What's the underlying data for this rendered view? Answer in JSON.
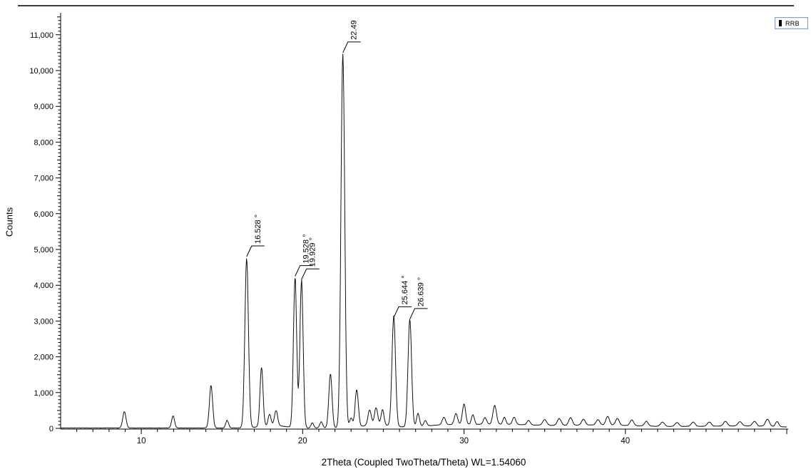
{
  "legend": {
    "series_label": "RRB",
    "swatch_color": "#000000",
    "border_color": "#8ca0b8"
  },
  "chart_data": {
    "type": "line",
    "subtype": "xrd-diffractogram",
    "title": "",
    "xlabel": "2Theta (Coupled TwoTheta/Theta) WL=1.54060",
    "ylabel": "Counts",
    "xlim": [
      5,
      50
    ],
    "ylim": [
      0,
      11500
    ],
    "grid": false,
    "legend_position": "top-right",
    "trace_color": "#101010",
    "x_major_ticks": [
      [
        10,
        "10"
      ],
      [
        20,
        "20"
      ],
      [
        30,
        "30"
      ],
      [
        40,
        "40"
      ]
    ],
    "y_major_ticks": [
      [
        0,
        "0"
      ],
      [
        1000,
        "1,000"
      ],
      [
        2000,
        "2,000"
      ],
      [
        3000,
        "3,000"
      ],
      [
        4000,
        "4,000"
      ],
      [
        5000,
        "5,000"
      ],
      [
        6000,
        "6,000"
      ],
      [
        7000,
        "7,000"
      ],
      [
        8000,
        "8,000"
      ],
      [
        9000,
        "9,000"
      ],
      [
        10000,
        "10,000"
      ],
      [
        11000,
        "11,000"
      ]
    ],
    "x_minor_step_deg": 1,
    "y_minor_step_counts": 100,
    "series": [
      {
        "name": "RRB",
        "baseline_counts": 12,
        "noise_amplitude": 6,
        "peaks": [
          [
            8.95,
            460,
            0.1
          ],
          [
            11.97,
            340,
            0.09
          ],
          [
            14.32,
            1190,
            0.1
          ],
          [
            15.32,
            210,
            0.09
          ],
          [
            16.528,
            4760,
            0.11
          ],
          [
            17.45,
            1650,
            0.095
          ],
          [
            17.95,
            330,
            0.09
          ],
          [
            18.35,
            430,
            0.1
          ],
          [
            19.528,
            4180,
            0.1
          ],
          [
            19.929,
            4120,
            0.1
          ],
          [
            20.6,
            150,
            0.08
          ],
          [
            21.15,
            170,
            0.09
          ],
          [
            21.72,
            1510,
            0.1
          ],
          [
            22.49,
            10480,
            0.115
          ],
          [
            23.0,
            260,
            0.09
          ],
          [
            23.35,
            1040,
            0.1
          ],
          [
            24.15,
            430,
            0.1
          ],
          [
            24.55,
            480,
            0.1
          ],
          [
            24.95,
            430,
            0.09
          ],
          [
            25.644,
            3060,
            0.11
          ],
          [
            26.639,
            3010,
            0.11
          ],
          [
            27.15,
            370,
            0.09
          ],
          [
            27.6,
            150,
            0.09
          ],
          [
            28.75,
            210,
            0.1
          ],
          [
            29.5,
            310,
            0.1
          ],
          [
            30.0,
            580,
            0.1
          ],
          [
            30.55,
            270,
            0.09
          ],
          [
            31.3,
            190,
            0.1
          ],
          [
            31.9,
            520,
            0.11
          ],
          [
            32.5,
            190,
            0.09
          ],
          [
            33.1,
            200,
            0.1
          ],
          [
            34.0,
            120,
            0.1
          ],
          [
            35.0,
            160,
            0.12
          ],
          [
            35.9,
            190,
            0.12
          ],
          [
            36.6,
            210,
            0.11
          ],
          [
            37.4,
            160,
            0.11
          ],
          [
            38.3,
            150,
            0.11
          ],
          [
            38.9,
            240,
            0.11
          ],
          [
            39.5,
            190,
            0.11
          ],
          [
            40.4,
            160,
            0.11
          ],
          [
            41.3,
            130,
            0.11
          ],
          [
            42.3,
            120,
            0.12
          ],
          [
            43.2,
            110,
            0.12
          ],
          [
            44.2,
            120,
            0.12
          ],
          [
            45.2,
            120,
            0.12
          ],
          [
            46.2,
            130,
            0.12
          ],
          [
            47.1,
            120,
            0.12
          ],
          [
            48.0,
            130,
            0.12
          ],
          [
            48.8,
            200,
            0.12
          ],
          [
            49.4,
            140,
            0.1
          ],
          [
            18.2,
            60,
            0.8
          ],
          [
            24.6,
            90,
            0.9
          ],
          [
            28.5,
            60,
            1.2
          ],
          [
            30.5,
            60,
            1.5
          ],
          [
            32.8,
            60,
            1.5
          ],
          [
            36.0,
            50,
            2.5
          ],
          [
            39.0,
            50,
            2.0
          ],
          [
            44.0,
            35,
            3.0
          ],
          [
            48.0,
            40,
            2.0
          ]
        ]
      }
    ],
    "annotations": [
      {
        "label": "16.528 °",
        "two_theta": 16.528,
        "apex_counts": 4800,
        "clipped": false
      },
      {
        "label": "19.528 °",
        "two_theta": 19.528,
        "apex_counts": 4250,
        "clipped": false
      },
      {
        "label": "19.929 °",
        "two_theta": 19.929,
        "apex_counts": 4160,
        "clipped": false
      },
      {
        "label": "22.49",
        "two_theta": 22.49,
        "apex_counts": 10500,
        "clipped": true
      },
      {
        "label": "25.644 °",
        "two_theta": 25.644,
        "apex_counts": 3100,
        "clipped": false
      },
      {
        "label": "26.639 °",
        "two_theta": 26.639,
        "apex_counts": 3050,
        "clipped": false
      }
    ]
  }
}
